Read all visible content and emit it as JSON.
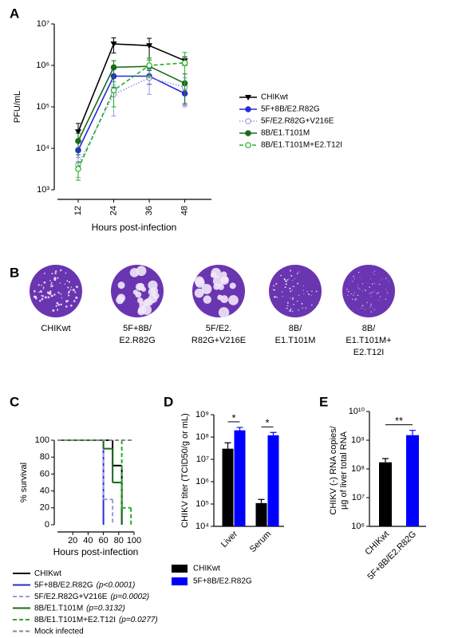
{
  "chart_data": [
    {
      "type": "line",
      "label": "A",
      "xlabel": "Hours post-infection",
      "ylabel": "PFU/mL",
      "log_y": true,
      "x": [
        12,
        24,
        36,
        48
      ],
      "xlim": [
        5,
        57
      ],
      "xticks": [
        12,
        24,
        36,
        48
      ],
      "ylim": [
        1000,
        10000000
      ],
      "yticks": [
        {
          "value": 1000,
          "label": "10³"
        },
        {
          "value": 10000,
          "label": "10⁴"
        },
        {
          "value": 100000,
          "label": "10⁵"
        },
        {
          "value": 1000000,
          "label": "10⁶"
        },
        {
          "value": 10000000,
          "label": "10⁷"
        }
      ],
      "series": [
        {
          "name": "CHIKwt",
          "color": "#000000",
          "marker": "triangle-down",
          "dash": "solid",
          "values": [
            25000,
            3300000,
            3000000,
            1300000
          ],
          "errors": [
            15000,
            1300000,
            1500000,
            300000
          ]
        },
        {
          "name": "5F+8B/E2.R82G",
          "color": "#2a2ad8",
          "marker": "circle",
          "dash": "solid",
          "values": [
            9000,
            550000,
            550000,
            210000
          ],
          "errors": [
            5000,
            250000,
            200000,
            100000
          ]
        },
        {
          "name": "5F/E2.R82G+V216E",
          "color": "#9a9ae2",
          "marker": "open-circle",
          "dash": "dotted",
          "values": [
            4000,
            200000,
            500000,
            300000
          ],
          "errors": [
            2000,
            140000,
            300000,
            200000
          ]
        },
        {
          "name": "8B/E1.T101M",
          "color": "#1a6b1a",
          "marker": "circle",
          "dash": "solid",
          "values": [
            15000,
            900000,
            950000,
            370000
          ],
          "errors": [
            8000,
            400000,
            400000,
            250000
          ]
        },
        {
          "name": "8B/E1.T101M+E2.T12I",
          "color": "#22b022",
          "marker": "open-circle",
          "dash": "dashed",
          "values": [
            3200,
            250000,
            1000000,
            1150000
          ],
          "errors": [
            1500,
            150000,
            500000,
            900000
          ]
        }
      ]
    },
    {
      "type": "step",
      "label": "C",
      "xlabel": "Hours post-infection",
      "ylabel": "% survival",
      "xlim": [
        0,
        100
      ],
      "xticks": [
        20,
        40,
        60,
        80,
        100
      ],
      "ylim": [
        0,
        100
      ],
      "yticks": [
        0,
        20,
        40,
        60,
        80,
        100
      ],
      "series": [
        {
          "name": "CHIKwt",
          "color": "#000000",
          "dash": "solid",
          "x": [
            0,
            72,
            84
          ],
          "values": [
            100,
            70,
            0
          ]
        },
        {
          "name": "5F+8B/E2.R82G",
          "note": "(p<0.0001)",
          "color": "#2a2ad8",
          "dash": "solid",
          "x": [
            0,
            60
          ],
          "values": [
            100,
            0
          ]
        },
        {
          "name": "5F/E2.R82G+V216E",
          "note": "(p=0.0002)",
          "color": "#9a9ae2",
          "dash": "dashed",
          "x": [
            0,
            60,
            72
          ],
          "values": [
            100,
            30,
            0
          ]
        },
        {
          "name": "8B/E1.T101M",
          "note": "(p=0.3132)",
          "color": "#1a6b1a",
          "dash": "solid",
          "x": [
            0,
            60,
            72,
            84
          ],
          "values": [
            100,
            90,
            50,
            0
          ]
        },
        {
          "name": "8B/E1.T101M+E2.T12I",
          "note": "(p=0.0277)",
          "color": "#22b022",
          "dash": "dashed",
          "x": [
            0,
            84,
            96
          ],
          "values": [
            100,
            20,
            0
          ]
        },
        {
          "name": "Mock infected",
          "color": "#888888",
          "dash": "dashed",
          "x": [
            0,
            100
          ],
          "values": [
            100,
            100
          ]
        }
      ]
    },
    {
      "type": "bar",
      "label": "D",
      "ylabel": "CHIKV titer (TCID50/g or mL)",
      "log_y": true,
      "categories": [
        "Liver",
        "Serum"
      ],
      "ylim": [
        10000,
        1000000000
      ],
      "yticks": [
        {
          "value": 10000,
          "label": "10⁴"
        },
        {
          "value": 100000,
          "label": "10⁵"
        },
        {
          "value": 1000000,
          "label": "10⁶"
        },
        {
          "value": 10000000,
          "label": "10⁷"
        },
        {
          "value": 100000000,
          "label": "10⁸"
        },
        {
          "value": 1000000000,
          "label": "10⁹"
        }
      ],
      "significance": [
        "*",
        "*"
      ],
      "series": [
        {
          "name": "CHIKwt",
          "color": "#000000",
          "values": [
            30000000,
            110000
          ],
          "errors": [
            25000000,
            50000
          ]
        },
        {
          "name": "5F+8B/E2.R82G",
          "color": "#0000ff",
          "values": [
            200000000,
            120000000
          ],
          "errors": [
            70000000,
            40000000
          ]
        }
      ]
    },
    {
      "type": "bar",
      "label": "E",
      "ylabel": [
        "CHIKV (-) RNA copies/",
        "µg of liver total RNA"
      ],
      "log_y": true,
      "categories": [
        "CHIKwt",
        "5F+8B/E2.R82G"
      ],
      "ylim": [
        1000000,
        10000000000
      ],
      "yticks": [
        {
          "value": 1000000,
          "label": "10⁶"
        },
        {
          "value": 10000000,
          "label": "10⁷"
        },
        {
          "value": 100000000,
          "label": "10⁸"
        },
        {
          "value": 1000000000,
          "label": "10⁹"
        },
        {
          "value": 10000000000,
          "label": "10¹⁰"
        }
      ],
      "significance": [
        "**"
      ],
      "values": [
        170000000,
        1500000000
      ],
      "errors": [
        60000000,
        700000000
      ],
      "colors": [
        "#000000",
        "#0000ff"
      ]
    }
  ],
  "plaque_panel": {
    "label": "B",
    "items": [
      {
        "lines": [
          "CHIKwt"
        ]
      },
      {
        "lines": [
          "5F+8B/",
          "E2.R82G"
        ]
      },
      {
        "lines": [
          "5F/E2.",
          "R82G+V216E"
        ]
      },
      {
        "lines": [
          "8B/",
          "E1.T101M"
        ]
      },
      {
        "lines": [
          "8B/",
          "E1.T101M+",
          "E2.T12I"
        ]
      }
    ]
  }
}
